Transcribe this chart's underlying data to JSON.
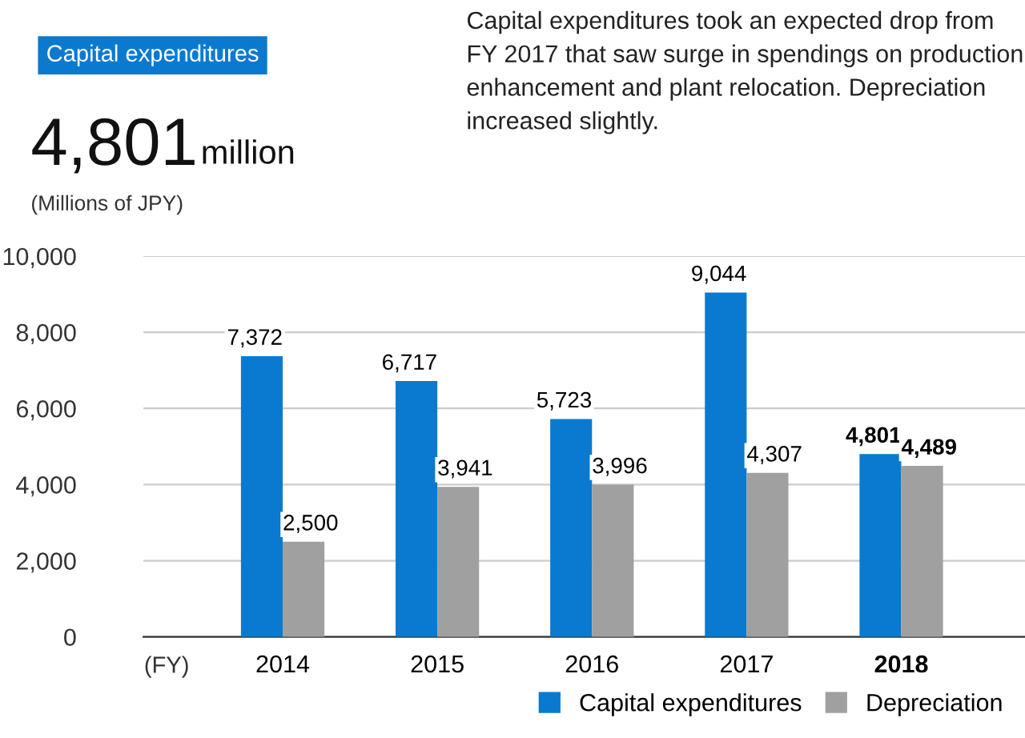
{
  "chart_data": {
    "type": "bar",
    "subtitle": "Capital expenditures took an expected drop from FY 2017 that saw surge in spendings on production enhancement and plant relocation. Depreciation increased slightly.",
    "annotations": [
      "Capital expenditures",
      "4,801million"
    ],
    "ylabel": "(Millions of JPY)",
    "xlabel": "(FY)",
    "categories": [
      "2014",
      "2015",
      "2016",
      "2017",
      "2018"
    ],
    "series": [
      {
        "name": "Capital expenditures",
        "color": "#0a7ad0",
        "values": [
          7372,
          6717,
          5723,
          9044,
          4801
        ],
        "value_labels": [
          "7,372",
          "6,717",
          "5,723",
          "9,044",
          "4,801"
        ]
      },
      {
        "name": "Depreciation",
        "color": "#a0a0a0",
        "values": [
          2500,
          3941,
          3996,
          4307,
          4489
        ],
        "value_labels": [
          "2,500",
          "3,941",
          "3,996",
          "4,307",
          "4,489"
        ]
      }
    ],
    "ylim": [
      0,
      10000
    ],
    "yticks": [
      {
        "value": 0,
        "label": "0"
      },
      {
        "value": 2000,
        "label": "2,000"
      },
      {
        "value": 4000,
        "label": "4,000"
      },
      {
        "value": 6000,
        "label": "6,000"
      },
      {
        "value": 8000,
        "label": "8,000"
      },
      {
        "value": 10000,
        "label": "10,000"
      }
    ],
    "grid": "y",
    "legend": "bottom right"
  }
}
